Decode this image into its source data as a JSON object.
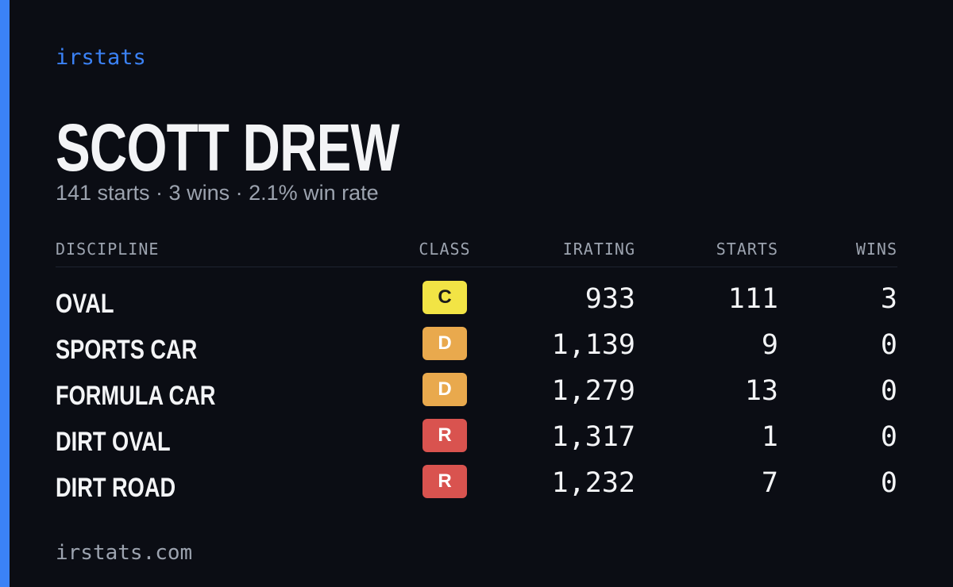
{
  "brand": "irstats",
  "player": {
    "name": "SCOTT DREW",
    "summary": "141 starts · 3 wins · 2.1% win rate"
  },
  "table": {
    "headers": [
      "DISCIPLINE",
      "CLASS",
      "IRATING",
      "STARTS",
      "WINS"
    ],
    "rows": [
      {
        "discipline": "OVAL",
        "class": "C",
        "class_color": "#f2e445",
        "class_text_color": "#1a1a1a",
        "irating": "933",
        "starts": "111",
        "wins": "3"
      },
      {
        "discipline": "SPORTS CAR",
        "class": "D",
        "class_color": "#e9a94d",
        "class_text_color": "#ffffff",
        "irating": "1,139",
        "starts": "9",
        "wins": "0"
      },
      {
        "discipline": "FORMULA CAR",
        "class": "D",
        "class_color": "#e9a94d",
        "class_text_color": "#ffffff",
        "irating": "1,279",
        "starts": "13",
        "wins": "0"
      },
      {
        "discipline": "DIRT OVAL",
        "class": "R",
        "class_color": "#d9534f",
        "class_text_color": "#ffffff",
        "irating": "1,317",
        "starts": "1",
        "wins": "0"
      },
      {
        "discipline": "DIRT ROAD",
        "class": "R",
        "class_color": "#d9534f",
        "class_text_color": "#ffffff",
        "irating": "1,232",
        "starts": "7",
        "wins": "0"
      }
    ]
  },
  "footer": "irstats.com"
}
